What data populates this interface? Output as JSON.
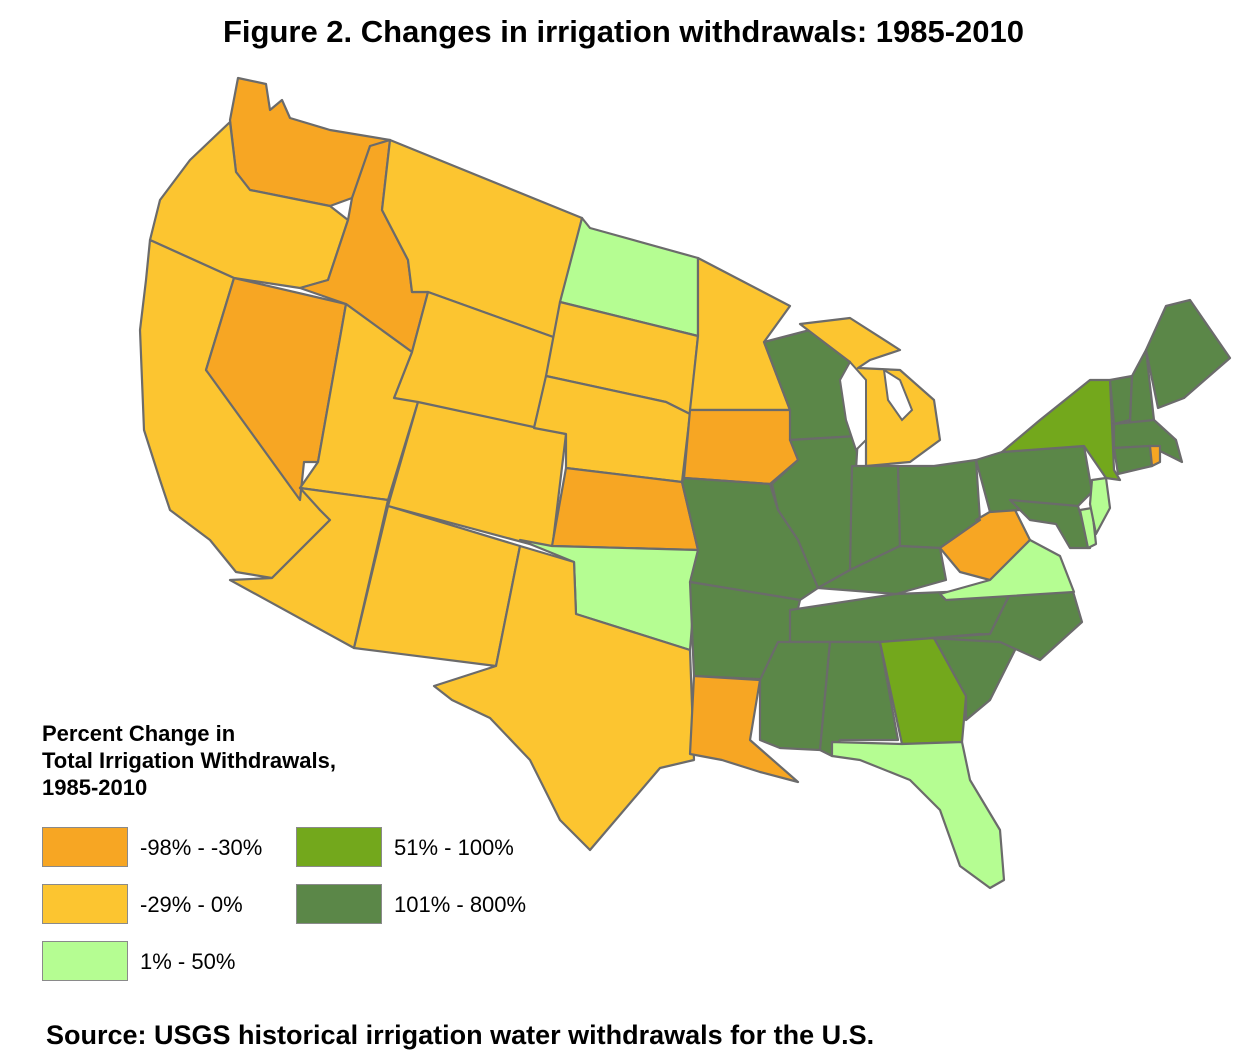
{
  "title": "Figure 2. Changes in irrigation withdrawals: 1985-2010",
  "legend": {
    "title_lines": [
      "Percent Change in",
      "Total Irrigation Withdrawals,",
      "1985-2010"
    ],
    "items": [
      {
        "label": "-98% - -30%",
        "color": "#f7a623"
      },
      {
        "label": "-29% - 0%",
        "color": "#fcc530"
      },
      {
        "label": "1% - 50%",
        "color": "#b5fd92"
      },
      {
        "label": "51% - 100%",
        "color": "#73a81c"
      },
      {
        "label": "101% - 800%",
        "color": "#5b8748"
      }
    ]
  },
  "source": "Source: USGS historical irrigation water withdrawals for the U.S.",
  "map_data": {
    "subject": "Percent change in total irrigation withdrawals by state, 1985-2010",
    "state_class": {
      "WA": "-98% - -30%",
      "ID": "-98% - -30%",
      "NV": "-98% - -30%",
      "KS": "-98% - -30%",
      "IA": "-98% - -30%",
      "LA": "-98% - -30%",
      "WV": "-98% - -30%",
      "RI": "-98% - -30%",
      "OR": "-29% - 0%",
      "CA": "-29% - 0%",
      "MT": "-29% - 0%",
      "WY": "-29% - 0%",
      "UT": "-29% - 0%",
      "CO": "-29% - 0%",
      "AZ": "-29% - 0%",
      "NM": "-29% - 0%",
      "TX": "-29% - 0%",
      "SD": "-29% - 0%",
      "NE": "-29% - 0%",
      "MN": "-29% - 0%",
      "MI": "-29% - 0%",
      "ND": "1% - 50%",
      "OK": "1% - 50%",
      "VA": "1% - 50%",
      "FL": "1% - 50%",
      "NJ": "1% - 50%",
      "DE": "1% - 50%",
      "NY": "51% - 100%",
      "GA": "51% - 100%",
      "WI": "101% - 800%",
      "IL": "101% - 800%",
      "IN": "101% - 800%",
      "OH": "101% - 800%",
      "MO": "101% - 800%",
      "AR": "101% - 800%",
      "KY": "101% - 800%",
      "TN": "101% - 800%",
      "MS": "101% - 800%",
      "AL": "101% - 800%",
      "NC": "101% - 800%",
      "SC": "101% - 800%",
      "PA": "101% - 800%",
      "MD": "101% - 800%",
      "ME": "101% - 800%",
      "VT": "101% - 800%",
      "NH": "101% - 800%",
      "MA": "101% - 800%",
      "CT": "101% - 800%"
    }
  }
}
